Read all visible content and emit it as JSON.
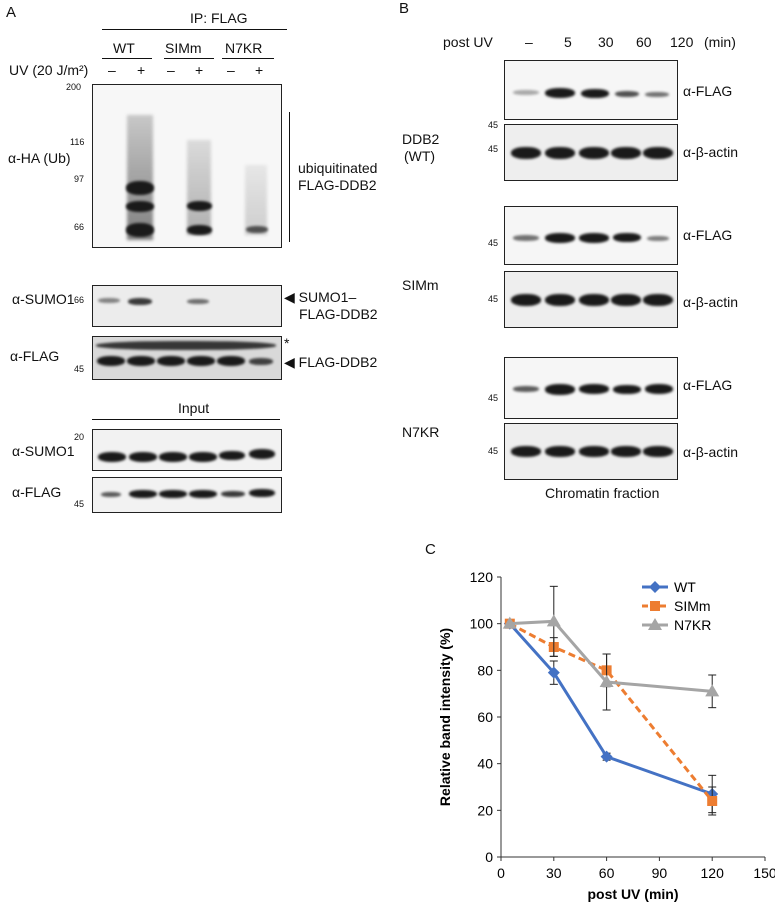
{
  "panelA": {
    "letter": "A",
    "ip_label": "IP: FLAG",
    "groups": [
      "WT",
      "SIMm",
      "N7KR"
    ],
    "uv_label": "UV (20 J/m²)",
    "lane_signs": [
      "–",
      "+",
      "–",
      "+",
      "–",
      "+"
    ],
    "blots": {
      "ha": {
        "label": "α-HA (Ub)",
        "markers": [
          "200",
          "116",
          "97",
          "66"
        ],
        "annotation_line1": "ubiquitinated",
        "annotation_line2": "FLAG-DDB2"
      },
      "sumo1_ip": {
        "label": "α-SUMO1",
        "markers": [
          "66"
        ],
        "annotation_line1": "SUMO1–",
        "annotation_line2": "FLAG-DDB2"
      },
      "flag_ip": {
        "label": "α-FLAG",
        "markers": [
          "45"
        ],
        "asterisk": "*",
        "annotation": "FLAG-DDB2"
      },
      "input_label": "Input",
      "sumo1_input": {
        "label": "α-SUMO1",
        "markers": [
          "20"
        ]
      },
      "flag_input": {
        "label": "α-FLAG",
        "markers": [
          "45"
        ]
      }
    }
  },
  "panelB": {
    "letter": "B",
    "post_uv": "post UV",
    "timepoints": [
      "–",
      "5",
      "30",
      "60",
      "120"
    ],
    "unit": "(min)",
    "rows": [
      {
        "name": "DDB2",
        "name2": "(WT)",
        "flag": "α-FLAG",
        "actin": "α-β-actin",
        "marker": "45"
      },
      {
        "name": "SIMm",
        "name2": "",
        "flag": "α-FLAG",
        "actin": "α-β-actin",
        "marker": "45"
      },
      {
        "name": "N7KR",
        "name2": "",
        "flag": "α-FLAG",
        "actin": "α-β-actin",
        "marker": "45"
      }
    ],
    "footer": "Chromatin fraction"
  },
  "panelC": {
    "letter": "C",
    "chart_data": {
      "type": "line",
      "xlabel": "post UV (min)",
      "ylabel": "Relative band intensity (%)",
      "xlim": [
        0,
        150
      ],
      "ylim": [
        0,
        120
      ],
      "xticks": [
        0,
        30,
        60,
        90,
        120,
        150
      ],
      "yticks": [
        0,
        20,
        40,
        60,
        80,
        100,
        120
      ],
      "legend_position": "top-right",
      "series": [
        {
          "name": "WT",
          "color": "#4472c4",
          "marker": "diamond",
          "dashed": false,
          "x": [
            5,
            30,
            60,
            120
          ],
          "y": [
            100,
            79,
            43,
            27
          ],
          "err": [
            0,
            5,
            1.5,
            8
          ]
        },
        {
          "name": "SIMm",
          "color": "#ed7d31",
          "marker": "square",
          "dashed": true,
          "x": [
            5,
            30,
            60,
            120
          ],
          "y": [
            100,
            90,
            80,
            24
          ],
          "err": [
            0,
            4,
            7,
            6
          ]
        },
        {
          "name": "N7KR",
          "color": "#a5a5a5",
          "marker": "triangle",
          "dashed": false,
          "x": [
            5,
            30,
            60,
            120
          ],
          "y": [
            100,
            101,
            75,
            71
          ],
          "err": [
            0,
            15,
            12,
            7
          ]
        }
      ]
    }
  }
}
